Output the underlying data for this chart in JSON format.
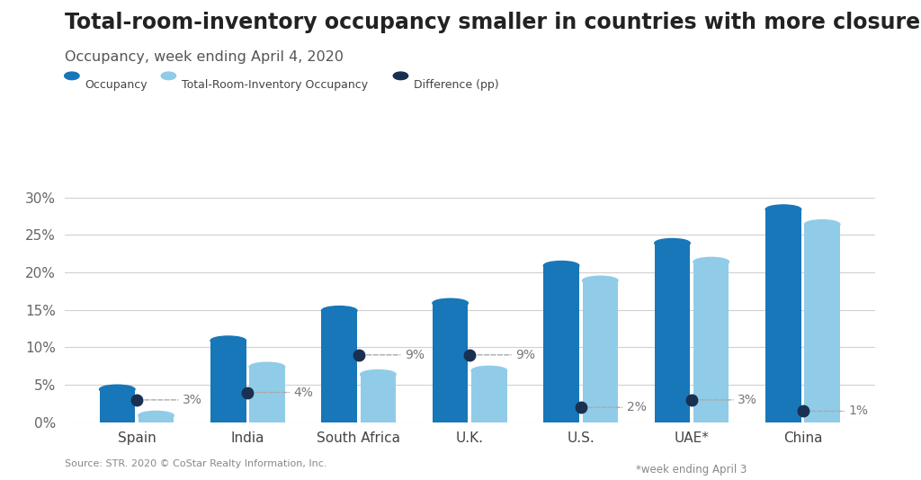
{
  "title": "Total-room-inventory occupancy smaller in countries with more closures",
  "subtitle": "Occupancy, week ending April 4, 2020",
  "source": "Source: STR. 2020 © CoStar Realty Information, Inc.",
  "categories": [
    "Spain",
    "India",
    "South Africa",
    "U.K.",
    "U.S.",
    "UAE*",
    "China"
  ],
  "footnote": "*week ending April 3",
  "occupancy": [
    5.0,
    11.5,
    15.5,
    16.5,
    21.5,
    24.5,
    29.0
  ],
  "tri_occupancy": [
    1.5,
    8.0,
    7.0,
    7.5,
    19.5,
    22.0,
    27.0
  ],
  "difference": [
    3,
    4,
    9,
    9,
    2,
    3,
    1
  ],
  "diff_dot_y": [
    3.0,
    4.0,
    9.0,
    9.0,
    2.0,
    3.0,
    1.5
  ],
  "color_occ": "#1777b8",
  "color_tri": "#90cce8",
  "color_dot": "#1a3050",
  "color_bg": "#ffffff",
  "color_grid": "#d0d0d0",
  "ylim": [
    0,
    32
  ],
  "yticks": [
    0,
    5,
    10,
    15,
    20,
    25,
    30
  ],
  "bar_width": 0.32,
  "legend_labels": [
    "Occupancy",
    "Total-Room-Inventory Occupancy",
    "Difference (pp)"
  ]
}
